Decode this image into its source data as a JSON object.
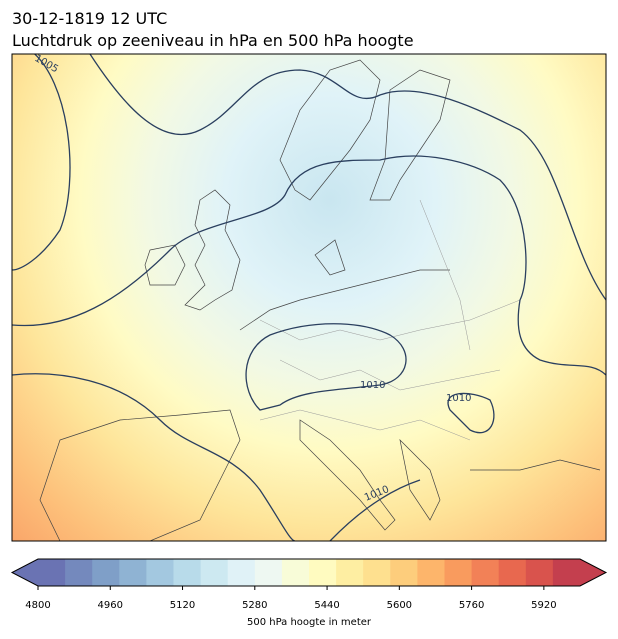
{
  "header": {
    "date": "30-12-1819 12 UTC",
    "title": "Luchtdruk op zeeniveau in hPa en 500 hPa hoogte"
  },
  "map": {
    "contour_labels": [
      1005,
      1010,
      1010,
      1010
    ]
  },
  "colorbar": {
    "range": [
      4800,
      6000
    ],
    "ticks": [
      4800,
      4960,
      5120,
      5280,
      5440,
      5600,
      5760,
      5920
    ],
    "label": "500 hPa hoogte in meter"
  }
}
